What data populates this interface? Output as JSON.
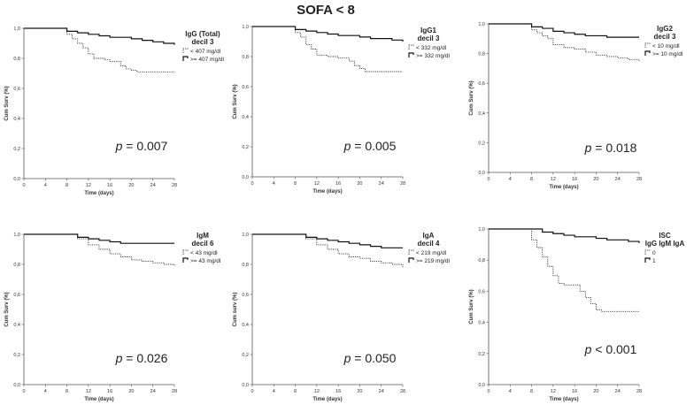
{
  "figure_title": "SOFA < 8",
  "chart_data": [
    {
      "type": "line",
      "legend_title": [
        "IgG (Total)",
        "decil 3"
      ],
      "legend_entries": [
        "< 407 mg/dl",
        ">= 407 mg/dl"
      ],
      "p_value": "= 0.007",
      "xlabel": "Time (days)",
      "ylabel": "Cum Surv (%)",
      "xticks": [
        "0",
        "4",
        "8",
        "12",
        "16",
        "20",
        "24",
        "28"
      ],
      "yticks": [
        "0,0",
        "0,2",
        "0,4",
        "0,6",
        "0,8",
        "1,0"
      ],
      "xlim": [
        0,
        28
      ],
      "ylim": [
        0,
        1
      ],
      "series": [
        {
          "name": "< 407 mg/dl",
          "style": "dotted",
          "x": [
            0,
            7,
            8,
            9,
            10,
            11,
            12,
            13,
            15,
            16,
            18,
            19,
            20,
            21,
            28
          ],
          "y": [
            1,
            1,
            0.96,
            0.93,
            0.9,
            0.87,
            0.83,
            0.8,
            0.79,
            0.78,
            0.75,
            0.73,
            0.72,
            0.71,
            0.71
          ]
        },
        {
          "name": ">= 407 mg/dl",
          "style": "solid",
          "x": [
            0,
            6,
            8,
            10,
            12,
            14,
            16,
            18,
            20,
            22,
            24,
            26,
            28
          ],
          "y": [
            1,
            1,
            0.98,
            0.97,
            0.96,
            0.95,
            0.94,
            0.94,
            0.93,
            0.92,
            0.91,
            0.9,
            0.89
          ]
        }
      ]
    },
    {
      "type": "line",
      "legend_title": [
        "IgG1",
        "decil 3"
      ],
      "legend_entries": [
        "< 332 mg/dl",
        ">= 332 mg/dl"
      ],
      "p_value": "= 0.005",
      "xlabel": "Time (days)",
      "ylabel": "Cum Surv (%)",
      "xticks": [
        "0",
        "4",
        "8",
        "12",
        "16",
        "20",
        "24",
        "28"
      ],
      "yticks": [
        "0,0",
        "0,2",
        "0,4",
        "0,6",
        "0,8",
        "1,0"
      ],
      "xlim": [
        0,
        28
      ],
      "ylim": [
        0,
        1
      ],
      "series": [
        {
          "name": "< 332 mg/dl",
          "style": "dotted",
          "x": [
            0,
            7,
            8,
            9,
            10,
            11,
            12,
            14,
            16,
            18,
            19,
            20,
            21,
            28
          ],
          "y": [
            1,
            1,
            0.96,
            0.93,
            0.88,
            0.85,
            0.81,
            0.8,
            0.79,
            0.77,
            0.74,
            0.72,
            0.7,
            0.7
          ]
        },
        {
          "name": ">= 332 mg/dl",
          "style": "solid",
          "x": [
            0,
            6,
            8,
            10,
            12,
            14,
            16,
            18,
            20,
            22,
            24,
            26,
            28
          ],
          "y": [
            1,
            1,
            0.98,
            0.97,
            0.96,
            0.95,
            0.94,
            0.94,
            0.93,
            0.92,
            0.92,
            0.91,
            0.9
          ]
        }
      ]
    },
    {
      "type": "line",
      "legend_title": [
        "IgG2",
        "decil 3"
      ],
      "legend_entries": [
        "< 10 mg/dl",
        ">= 10 mg/dl"
      ],
      "p_value": "= 0.018",
      "xlabel": "Time (days)",
      "ylabel": "Cum Surv (%)",
      "xticks": [
        "0",
        "4",
        "8",
        "12",
        "16",
        "20",
        "24",
        "28"
      ],
      "yticks": [
        "0,0",
        "0,2",
        "0,4",
        "0,6",
        "0,8",
        "1,0"
      ],
      "xlim": [
        0,
        28
      ],
      "ylim": [
        0,
        1
      ],
      "series": [
        {
          "name": "< 10 mg/dl",
          "style": "dotted",
          "x": [
            0,
            6,
            8,
            9,
            10,
            11,
            12,
            14,
            16,
            18,
            20,
            22,
            24,
            26,
            28
          ],
          "y": [
            1,
            1,
            0.96,
            0.94,
            0.92,
            0.9,
            0.86,
            0.84,
            0.83,
            0.81,
            0.79,
            0.78,
            0.77,
            0.76,
            0.75
          ]
        },
        {
          "name": ">= 10 mg/dl",
          "style": "solid",
          "x": [
            0,
            6,
            8,
            10,
            12,
            14,
            16,
            18,
            20,
            22,
            24,
            28
          ],
          "y": [
            1,
            1,
            0.98,
            0.97,
            0.95,
            0.94,
            0.93,
            0.92,
            0.92,
            0.91,
            0.91,
            0.91
          ]
        }
      ]
    },
    {
      "type": "line",
      "legend_title": [
        "IgM",
        "decil 6"
      ],
      "legend_entries": [
        "< 43 mg/dl",
        ">= 43 mg/dl"
      ],
      "p_value": "= 0.026",
      "xlabel": "Time (days)",
      "ylabel": "Cum Surv (%)",
      "xticks": [
        "0",
        "4",
        "8",
        "12",
        "16",
        "20",
        "24",
        "28"
      ],
      "yticks": [
        "0,0",
        "0,2",
        "0,4",
        "0,6",
        "0,8",
        "1,0"
      ],
      "xlim": [
        0,
        28
      ],
      "ylim": [
        0,
        1
      ],
      "series": [
        {
          "name": "< 43 mg/dl",
          "style": "dotted",
          "x": [
            0,
            8,
            10,
            12,
            14,
            16,
            18,
            20,
            22,
            24,
            26,
            28
          ],
          "y": [
            1,
            1,
            0.97,
            0.93,
            0.9,
            0.87,
            0.85,
            0.83,
            0.82,
            0.81,
            0.8,
            0.79
          ]
        },
        {
          "name": ">= 43 mg/dl",
          "style": "solid",
          "x": [
            0,
            8,
            10,
            12,
            14,
            16,
            18,
            20,
            28
          ],
          "y": [
            1,
            1,
            0.98,
            0.97,
            0.96,
            0.95,
            0.94,
            0.94,
            0.94
          ]
        }
      ]
    },
    {
      "type": "line",
      "legend_title": [
        "IgA",
        "decil 4"
      ],
      "legend_entries": [
        "< 219 mg/dl",
        ">= 219 mg/dl"
      ],
      "p_value": "= 0.050",
      "xlabel": "Time (days)",
      "ylabel": "Cum surv (%)",
      "xticks": [
        "0",
        "4",
        "8",
        "12",
        "16",
        "20",
        "24",
        "28"
      ],
      "yticks": [
        "0,0",
        "0,2",
        "0,4",
        "0,6",
        "0,8",
        "1,0"
      ],
      "xlim": [
        0,
        28
      ],
      "ylim": [
        0,
        1
      ],
      "series": [
        {
          "name": "< 219 mg/dl",
          "style": "dotted",
          "x": [
            0,
            8,
            10,
            12,
            14,
            16,
            18,
            20,
            22,
            24,
            26,
            28
          ],
          "y": [
            1,
            1,
            0.97,
            0.93,
            0.9,
            0.87,
            0.85,
            0.84,
            0.82,
            0.81,
            0.8,
            0.78
          ]
        },
        {
          "name": ">= 219 mg/dl",
          "style": "solid",
          "x": [
            0,
            8,
            10,
            12,
            14,
            16,
            18,
            20,
            22,
            24,
            28
          ],
          "y": [
            1,
            1,
            0.98,
            0.97,
            0.96,
            0.95,
            0.94,
            0.93,
            0.92,
            0.91,
            0.91
          ]
        }
      ]
    },
    {
      "type": "line",
      "legend_title": [
        "ISC",
        "IgG IgM IgA"
      ],
      "legend_entries": [
        "0",
        "1"
      ],
      "p_value": "< 0.001",
      "xlabel": "Time (days)",
      "ylabel": "Cum Surv (%)",
      "xticks": [
        "0",
        "4",
        "8",
        "12",
        "16",
        "20",
        "24",
        "28"
      ],
      "yticks": [
        "0,0",
        "0,2",
        "0,4",
        "0,6",
        "0,8",
        "1,0"
      ],
      "xlim": [
        0,
        28
      ],
      "ylim": [
        0,
        1
      ],
      "series": [
        {
          "name": "0",
          "style": "dotted",
          "x": [
            0,
            7,
            8,
            9,
            10,
            11,
            12,
            13,
            14,
            17,
            18,
            19,
            20,
            21,
            28
          ],
          "y": [
            1,
            1,
            0.93,
            0.88,
            0.82,
            0.76,
            0.7,
            0.65,
            0.64,
            0.6,
            0.56,
            0.52,
            0.48,
            0.47,
            0.47
          ]
        },
        {
          "name": "1",
          "style": "solid",
          "x": [
            0,
            8,
            10,
            12,
            14,
            16,
            18,
            20,
            22,
            24,
            26,
            28
          ],
          "y": [
            1,
            1,
            0.98,
            0.97,
            0.96,
            0.95,
            0.95,
            0.94,
            0.93,
            0.93,
            0.92,
            0.91
          ]
        }
      ]
    }
  ]
}
